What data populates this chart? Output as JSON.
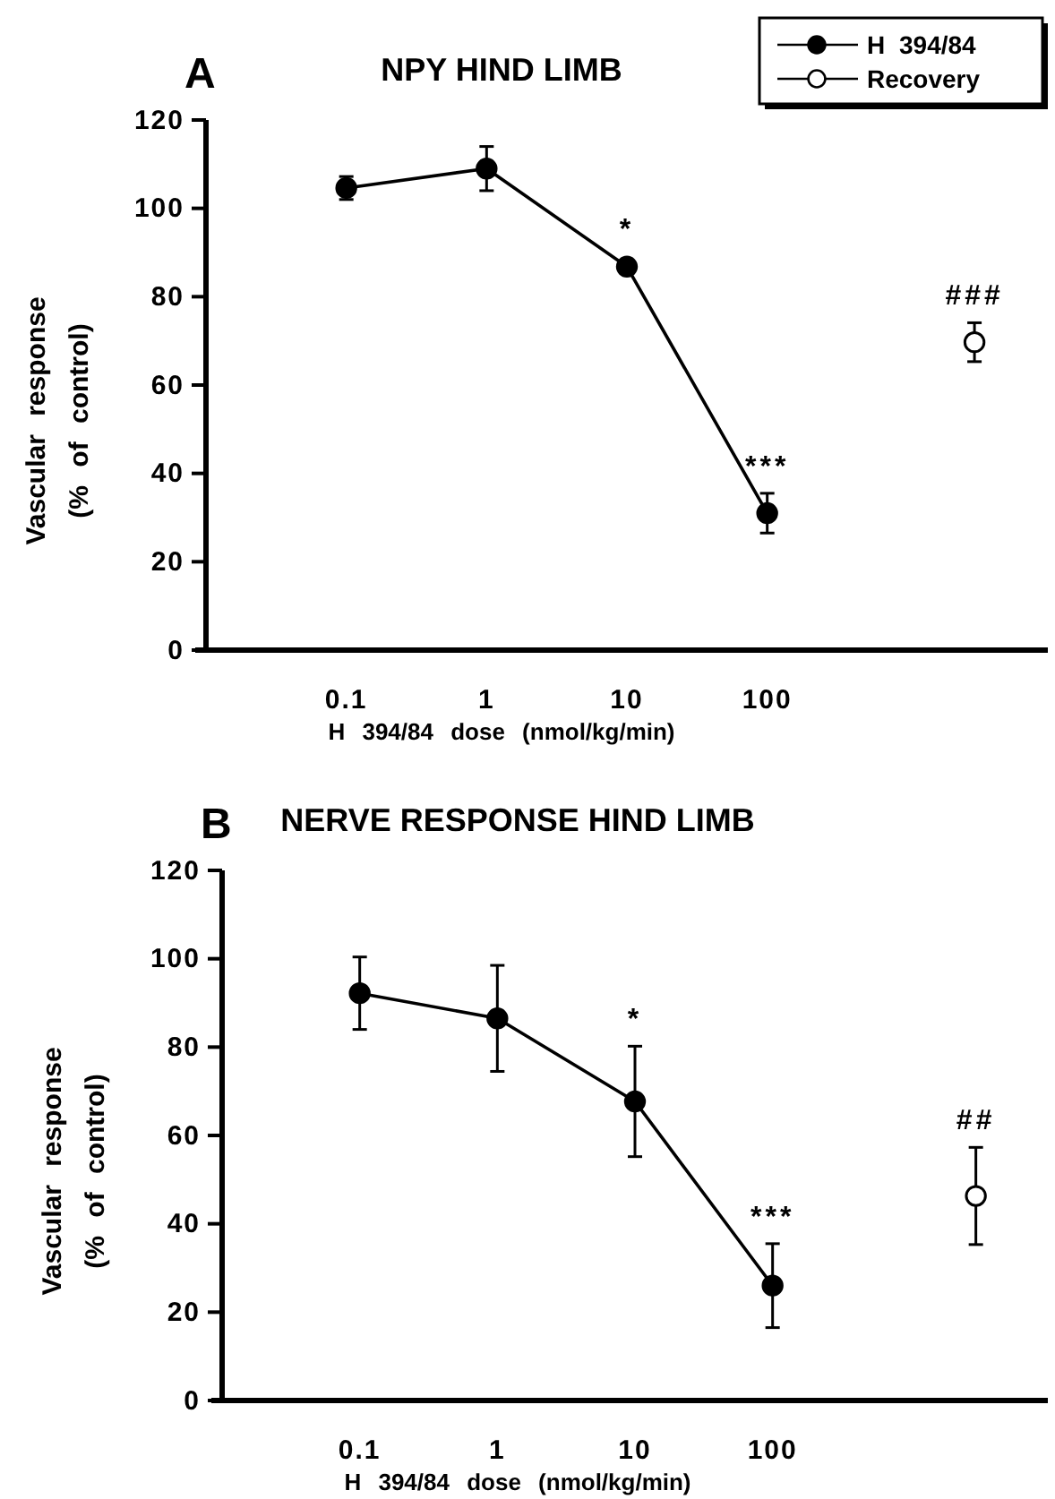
{
  "chart_data": [
    {
      "type": "line",
      "title": "NPY HIND LIMB",
      "annotations": [
        "A",
        {
          "text": "*",
          "x": 10,
          "y": 86.8
        },
        {
          "text": "***",
          "x": 100,
          "y": 31
        },
        {
          "text": "###",
          "x": 3000,
          "y": 69.7
        }
      ],
      "xlabel": "H 394/84 dose (nmol/kg/min)",
      "ylabel": "Vascular response\n(% of control)",
      "log": "x",
      "xlim": [
        0.01,
        10000
      ],
      "xticks": [
        0.1,
        1,
        10,
        100
      ],
      "ylim": [
        0,
        120
      ],
      "yticks": [
        0,
        20,
        40,
        60,
        80,
        100,
        120
      ],
      "legend": "top right",
      "marker": "circle",
      "series": [
        {
          "name": "H 394/84",
          "type": "line",
          "color": "#000000",
          "x": [
            0.1,
            1,
            10,
            100
          ],
          "values": [
            104.6,
            109,
            86.8,
            31
          ],
          "errors": [
            2.6,
            5,
            1,
            4.5
          ]
        },
        {
          "name": "Recovery",
          "type": "scatter",
          "color": "#ffffff",
          "x": [
            3000
          ],
          "values": [
            69.7
          ],
          "errors": [
            4.4
          ]
        }
      ]
    },
    {
      "type": "line",
      "title": "NERVE RESPONSE HIND LIMB",
      "annotations": [
        "B",
        {
          "text": "*",
          "x": 10,
          "y": 67.7
        },
        {
          "text": "***",
          "x": 100,
          "y": 26
        },
        {
          "text": "##",
          "x": 3000,
          "y": 46.3
        }
      ],
      "xlabel": "H 394/84 dose (nmol/kg/min)",
      "ylabel": "Vascular response\n(% of control)",
      "log": "x",
      "xlim": [
        0.01,
        10000
      ],
      "xticks": [
        0.1,
        1,
        10,
        100
      ],
      "ylim": [
        0,
        120
      ],
      "yticks": [
        0,
        20,
        40,
        60,
        80,
        100,
        120
      ],
      "legend": false,
      "marker": "circle",
      "series": [
        {
          "type": "line",
          "color": "#000000",
          "x": [
            0.1,
            1,
            10,
            100
          ],
          "values": [
            92.2,
            86.5,
            67.7,
            26
          ],
          "errors": [
            8.2,
            12,
            12.5,
            9.5
          ]
        },
        {
          "type": "scatter",
          "color": "#ffffff",
          "x": [
            3000
          ],
          "values": [
            46.3
          ],
          "errors": [
            11
          ]
        }
      ]
    }
  ]
}
